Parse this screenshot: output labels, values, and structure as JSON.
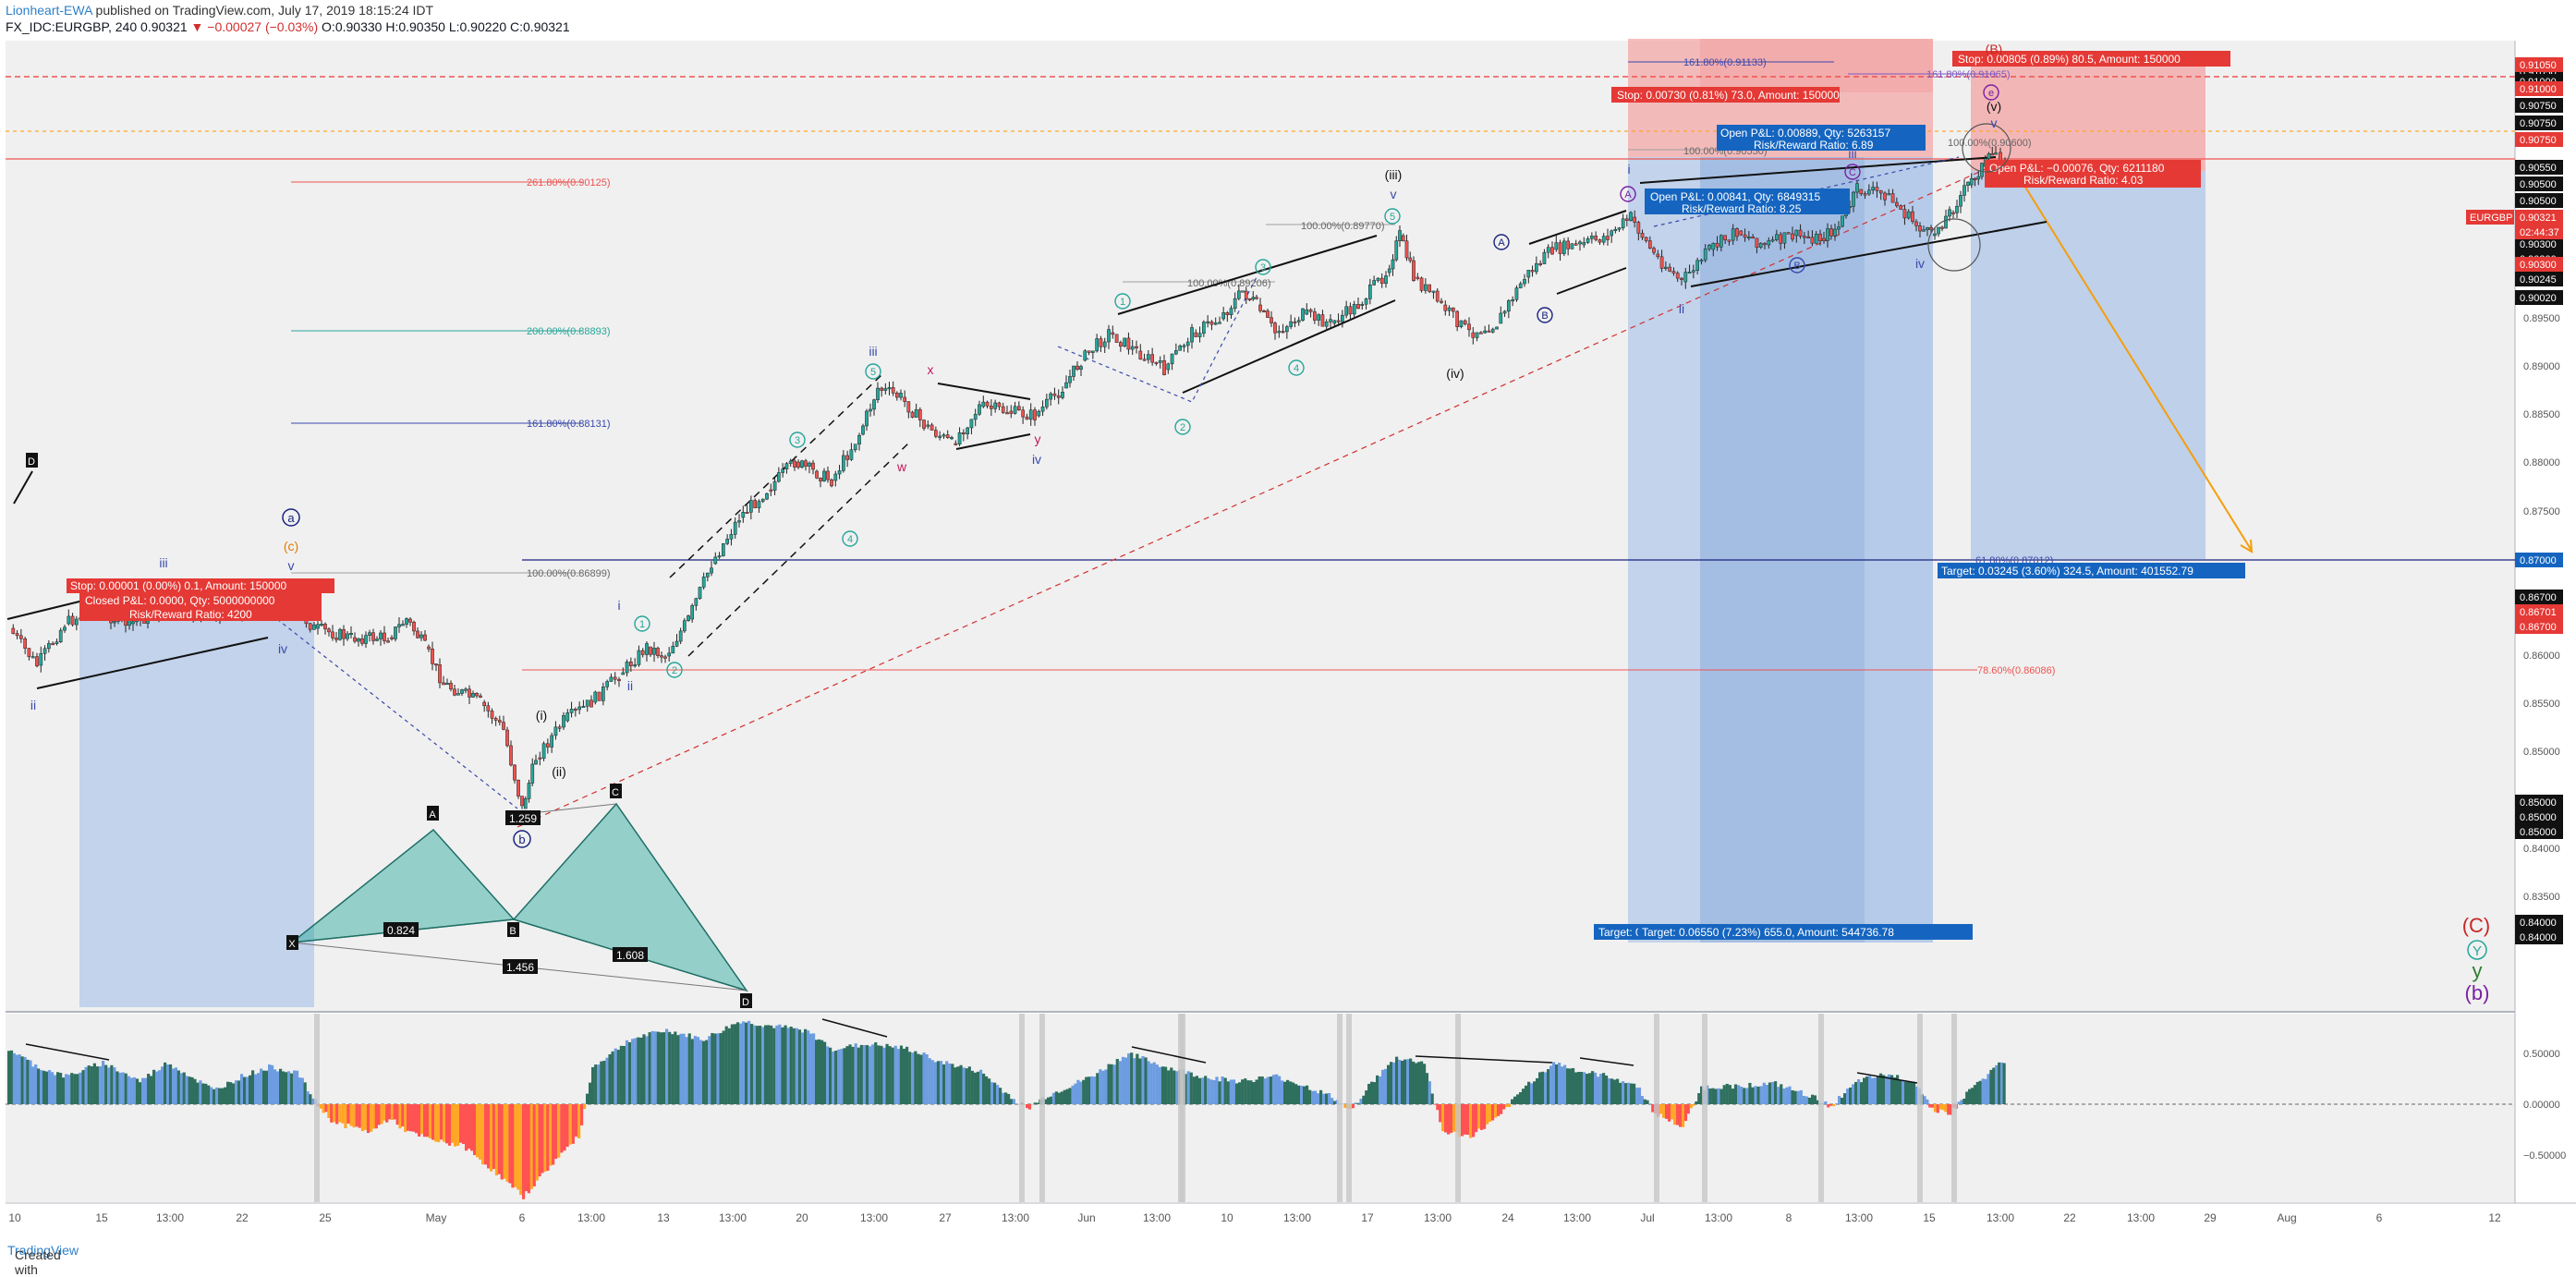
{
  "header": {
    "author": "Lionheart-EWA",
    "published": " published on TradingView.com, July 17, 2019 18:15:24 IDT",
    "symbol": "FX_IDC:EURGBP, 240",
    "last": "0.90321",
    "change": "▼ −0.00027 (−0.03%)",
    "ohlc_o": "O:0.90330",
    "ohlc_h": "H:0.90350",
    "ohlc_l": "L:0.90220",
    "ohlc_c": "C:0.90321"
  },
  "footer": {
    "created": "Created with ",
    "brand": "TradingView"
  },
  "price_axis": {
    "ticks": [
      "0.89500",
      "0.89000",
      "0.88500",
      "0.88000",
      "0.87500",
      "0.87000",
      "0.86500",
      "0.86000",
      "0.85500",
      "0.85000",
      "0.84500",
      "0.84000",
      "0.83500"
    ],
    "tags_black": [
      "0.91050",
      "0.91000",
      "0.90750",
      "0.90750",
      "0.90550",
      "0.90500",
      "0.90500",
      "0.90300",
      "0.90300",
      "0.90245",
      "0.90020",
      "0.86700",
      "0.85000",
      "0.85000",
      "0.85000",
      "0.84000",
      "0.84000"
    ],
    "tags_red": [
      "0.91050",
      "0.91000",
      "0.90750",
      "0.90300",
      "0.86701",
      "0.86700"
    ],
    "tag_symbol": "EURGBP",
    "tag_price": "0.90321",
    "tag_countdown": "02:44:37",
    "tag_blue": "0.87000"
  },
  "osc_axis": {
    "ticks": [
      "0.50000",
      "0.00000",
      "−0.50000"
    ]
  },
  "time_axis": {
    "labels": [
      "10",
      "15",
      "13:00",
      "22",
      "25",
      "May",
      "6",
      "13:00",
      "13",
      "13:00",
      "20",
      "13:00",
      "27",
      "13:00",
      "Jun",
      "13:00",
      "10",
      "13:00",
      "17",
      "13:00",
      "24",
      "13:00",
      "Jul",
      "13:00",
      "8",
      "13:00",
      "15",
      "13:00",
      "22",
      "13:00",
      "29",
      "Aug",
      "6",
      "12"
    ]
  },
  "fib_levels": {
    "f261": "261.80%(0.90125)",
    "f200": "200.00%(0.88893)",
    "f161": "161.80%(0.88131)",
    "f100": "100.00%(0.86899)",
    "f786": "78.60%(0.86086)",
    "f618": "61.80%(0.87012)",
    "f161b": "161.80%(0.91133)",
    "f161c": "161.80%(0.91065)",
    "f100b": "100.00%(0.89770)",
    "f100c": "100.00%(0.89206)",
    "f100d": "100.00%(0.90550)",
    "f100e": "100.00%(0.90600)"
  },
  "trade_boxes": {
    "left_stop": "Stop: 0.00001 (0.00%) 0.1, Amount: 150000",
    "left_closed": "Closed P&L: 0.0000, Qty: 5000000000",
    "left_rr": "Risk/Reward Ratio: 4200",
    "mid_stop": "Stop: 0.00730 (0.81%) 73.0, Amount: 150000",
    "mid_pl1": "Open P&L: 0.00889, Qty: 5263157",
    "mid_rr1": "Risk/Reward Ratio: 6.89",
    "mid_pl2": "Open P&L: 0.00841, Qty: 6849315",
    "mid_rr2": "Risk/Reward Ratio: 8.25",
    "mid_target1": "Target: 0.0",
    "mid_target2": "Target: 0.06550 (7.23%) 655.0, Amount: 544736.78",
    "right_stop": "Stop: 0.00805 (0.89%) 80.5, Amount: 150000",
    "right_pl": "Open P&L: −0.00076, Qty: 6211180",
    "right_rr": "Risk/Reward Ratio: 4.03",
    "right_target": "Target: 0.03245 (3.60%) 324.5, Amount: 401552.79"
  },
  "pattern": {
    "X": "X",
    "A": "A",
    "B": "B",
    "C": "C",
    "D": "D",
    "r1": "0.824",
    "r2": "1.608",
    "r3": "1.456",
    "r4": "1.259",
    "D_left": "D"
  },
  "waves": {
    "iii_top": "iii",
    "ii_left": "ii",
    "iv_left": "iv",
    "v_left": "v",
    "a_circ": "a",
    "c_paren": "(c)",
    "b_circ": "b",
    "i1": "(i)",
    "ii1": "(ii)",
    "iii1": "(iii)",
    "iv1": "(iv)",
    "v1": "(v)",
    "i_s": "i",
    "ii_s": "ii",
    "iii_s": "iii",
    "iv_s": "iv",
    "v_s": "v",
    "w": "w",
    "x": "x",
    "y": "y",
    "n1": "1",
    "n2": "2",
    "n3": "3",
    "n4": "4",
    "n5": "5",
    "A": "A",
    "B": "B",
    "C": "C",
    "e": "e",
    "Bp": "(B)",
    "C_red": "(C)",
    "Y_circ": "Y",
    "y_green": "y",
    "b_purple": "(b)"
  },
  "colors": {
    "up_candle": "#26a69a",
    "down_candle": "#ef5350",
    "wave_blue": "#1e3a8a",
    "wave_teal": "#26a69a",
    "wave_magenta": "#c2185b",
    "stop_zone": "#f4a3a3",
    "target_zone": "#aec6e8",
    "osc_pos": "#2f6f5e",
    "osc_pos_light": "#6d9de0",
    "osc_neg": "#ff5252",
    "osc_neg_light": "#ffa726"
  }
}
